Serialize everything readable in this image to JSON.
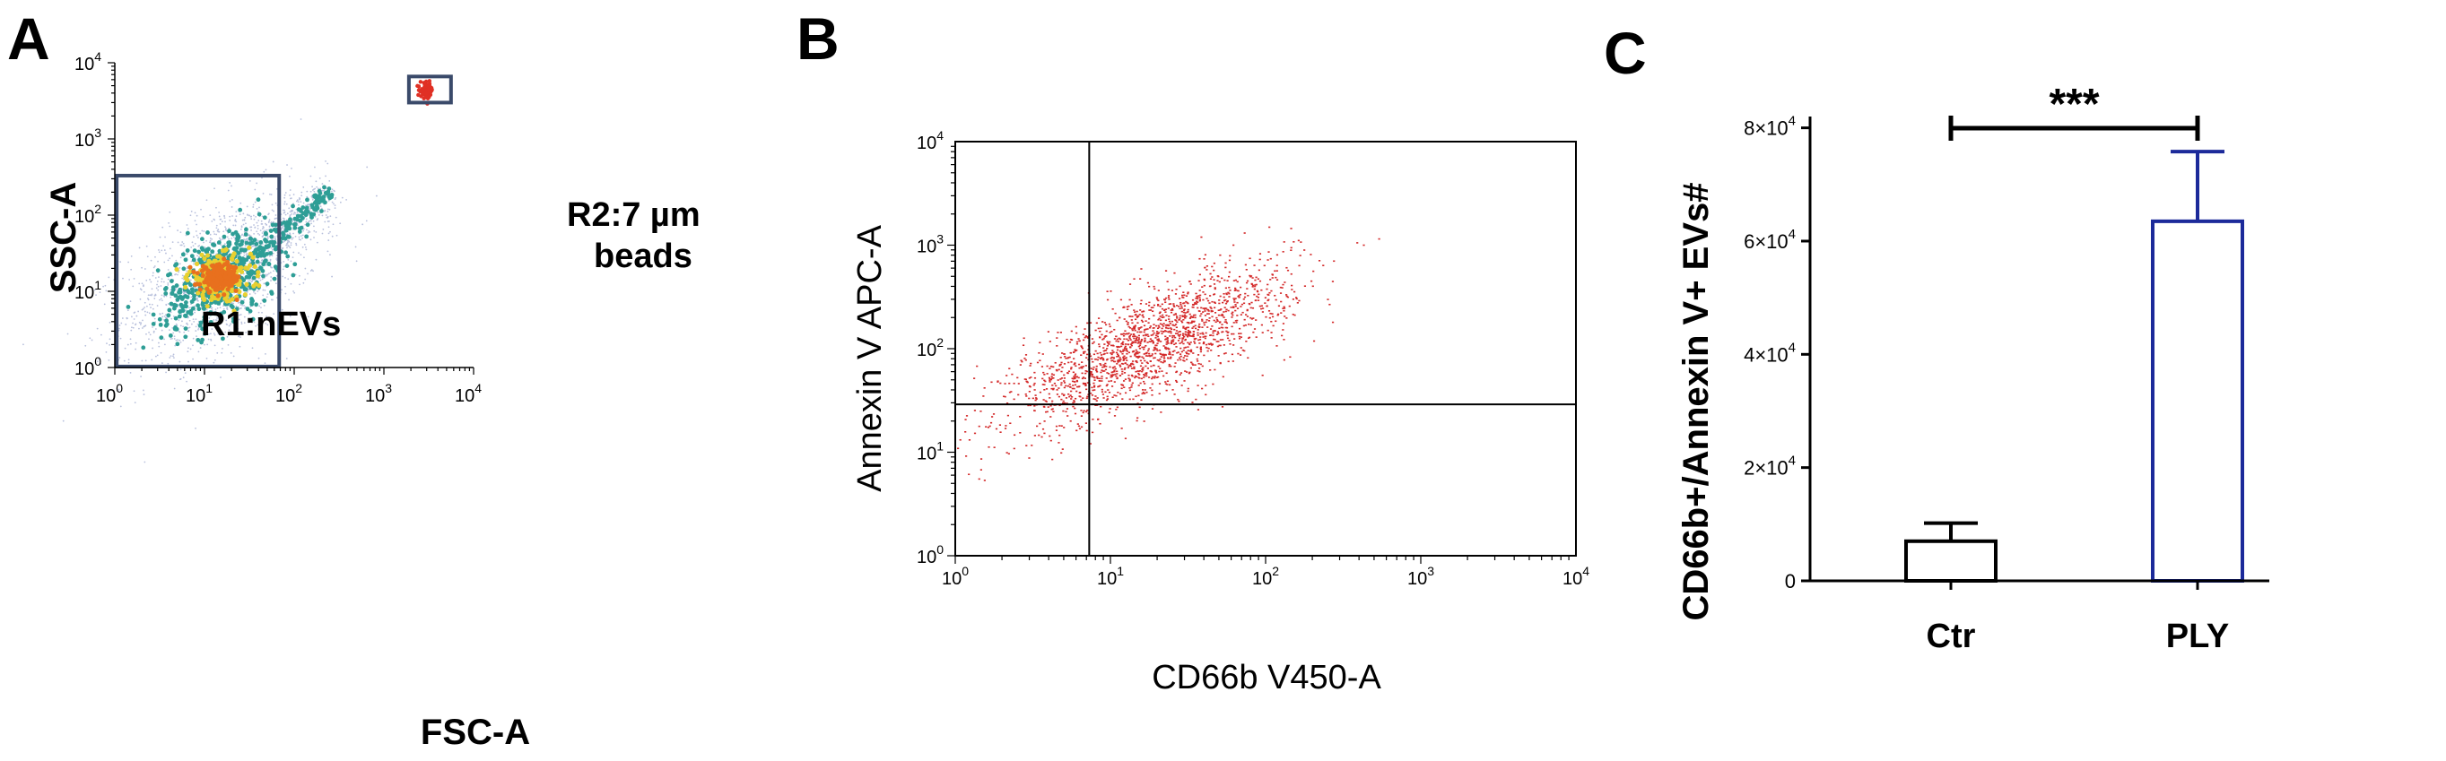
{
  "panels": {
    "a": "A",
    "b": "B",
    "c": "C"
  },
  "chart_data": [
    {
      "type": "scatter",
      "panel": "A",
      "xlabel": "FSC-A",
      "ylabel": "SSC-A",
      "xscale": "log",
      "yscale": "log",
      "xlim": [
        1,
        10000
      ],
      "ylim": [
        1,
        10000
      ],
      "xticks": [
        {
          "base": "10",
          "exp": "0",
          "v": 1
        },
        {
          "base": "10",
          "exp": "1",
          "v": 10
        },
        {
          "base": "10",
          "exp": "2",
          "v": 100
        },
        {
          "base": "10",
          "exp": "3",
          "v": 1000
        },
        {
          "base": "10",
          "exp": "4",
          "v": 10000
        }
      ],
      "yticks": [
        {
          "base": "10",
          "exp": "0",
          "v": 1
        },
        {
          "base": "10",
          "exp": "1",
          "v": 10
        },
        {
          "base": "10",
          "exp": "2",
          "v": 100
        },
        {
          "base": "10",
          "exp": "3",
          "v": 1000
        },
        {
          "base": "10",
          "exp": "4",
          "v": 10000
        }
      ],
      "density_display": true,
      "colors": {
        "sparse": "#b8c0dc",
        "low": "#2e9e96",
        "mid": "#e8d030",
        "high": "#e8701e",
        "beads": "#e03024"
      },
      "clusters": [
        {
          "name": "nEVs population",
          "x_center": 15,
          "y_center": 15,
          "x_spread_log": 0.32,
          "y_spread_log": 0.28
        },
        {
          "name": "diagonal tail",
          "x_from": 30,
          "y_from": 25,
          "x_to": 250,
          "y_to": 200
        },
        {
          "name": "beads population",
          "x_center": 3000,
          "y_center": 4300
        }
      ],
      "gates": [
        {
          "id": "R1",
          "label": "R1:nEVs",
          "x_range": [
            1.05,
            68
          ],
          "y_range": [
            1.03,
            330
          ]
        },
        {
          "id": "R2",
          "label_line1": "R2:7 µm",
          "label_line2": "beads",
          "x_range": [
            1900,
            5600
          ],
          "y_range": [
            3000,
            6600
          ]
        }
      ]
    },
    {
      "type": "scatter",
      "panel": "B",
      "xlabel": "CD66b V450-A",
      "ylabel": "Annexin V APC-A",
      "xscale": "log",
      "yscale": "log",
      "xlim": [
        1,
        10000
      ],
      "ylim": [
        1,
        10000
      ],
      "xticks": [
        {
          "base": "10",
          "exp": "0",
          "v": 1
        },
        {
          "base": "10",
          "exp": "1",
          "v": 10
        },
        {
          "base": "10",
          "exp": "2",
          "v": 100
        },
        {
          "base": "10",
          "exp": "3",
          "v": 1000
        },
        {
          "base": "10",
          "exp": "4",
          "v": 10000
        }
      ],
      "yticks": [
        {
          "base": "10",
          "exp": "0",
          "v": 1
        },
        {
          "base": "10",
          "exp": "1",
          "v": 10
        },
        {
          "base": "10",
          "exp": "2",
          "v": 100
        },
        {
          "base": "10",
          "exp": "3",
          "v": 1000
        },
        {
          "base": "10",
          "exp": "4",
          "v": 10000
        }
      ],
      "point_color": "#d42a2a",
      "quadrant_lines": {
        "x": 7.3,
        "y": 29
      },
      "cloud": {
        "x_center": 18,
        "y_center": 110,
        "spread_log": 0.45,
        "correlation": 0.75
      }
    },
    {
      "type": "bar",
      "panel": "C",
      "categories": [
        "Ctr",
        "PLY"
      ],
      "values": [
        7000,
        63500
      ],
      "errors": [
        3200,
        12300
      ],
      "ylabel": "CD66b+/Annexin V+ EVs#",
      "ylim": [
        0,
        82000
      ],
      "yticks": [
        {
          "v": 0,
          "label": "0"
        },
        {
          "v": 20000,
          "mant": "2×10",
          "exp": "4"
        },
        {
          "v": 40000,
          "mant": "4×10",
          "exp": "4"
        },
        {
          "v": 60000,
          "mant": "6×10",
          "exp": "4"
        },
        {
          "v": 80000,
          "mant": "8×10",
          "exp": "4"
        }
      ],
      "bar_colors": [
        "#000000",
        "#1c2a9a"
      ],
      "significance": {
        "between": [
          "Ctr",
          "PLY"
        ],
        "label": "***"
      }
    }
  ]
}
